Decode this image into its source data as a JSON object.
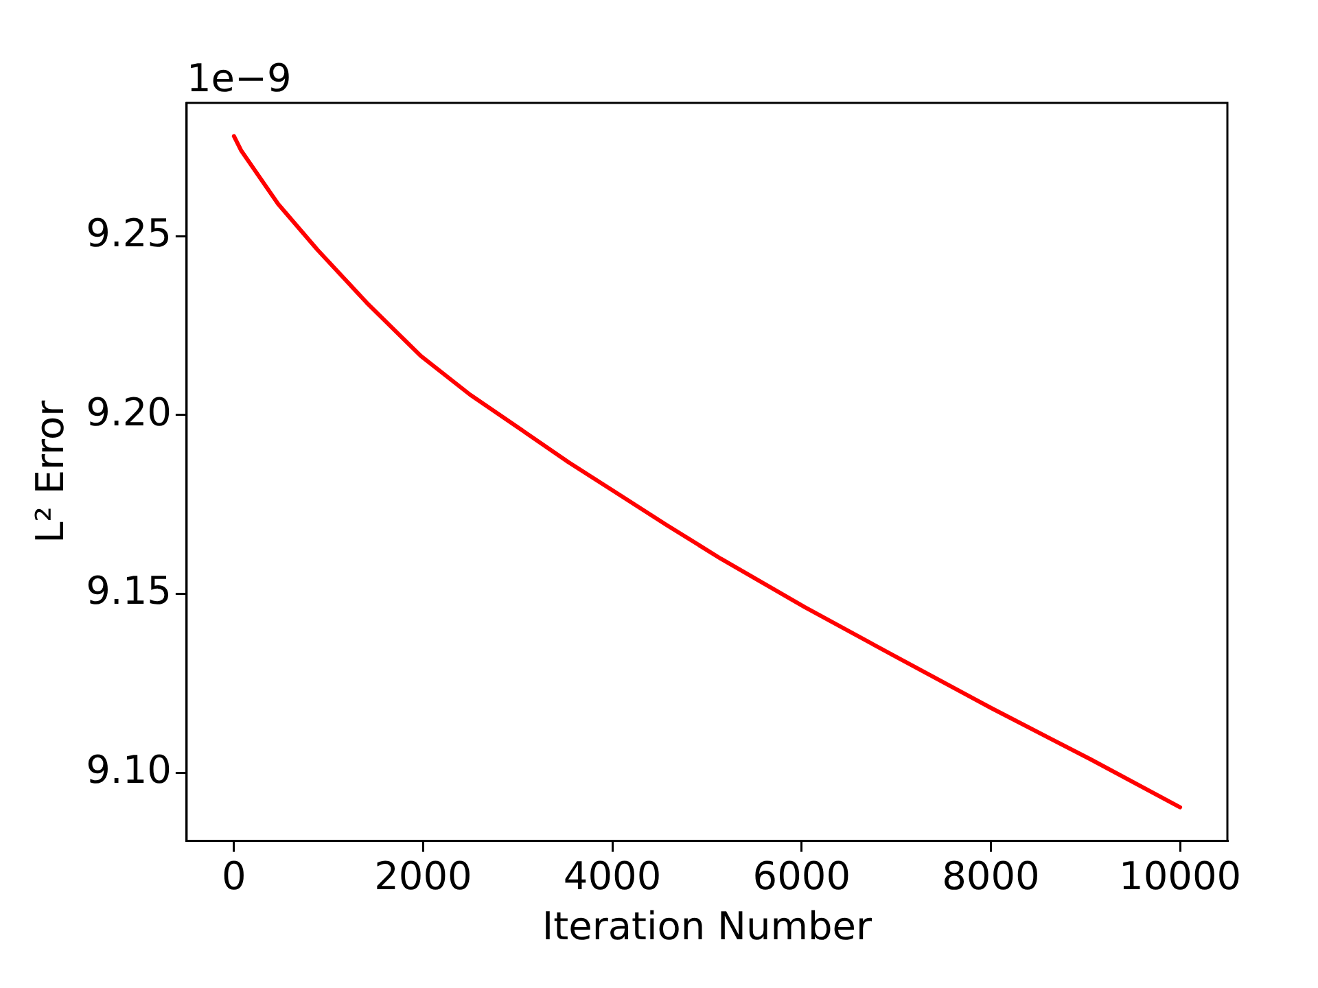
{
  "chart_data": {
    "type": "line",
    "xlabel": "Iteration Number",
    "ylabel": "L² Error",
    "annotations": [
      "1e−9"
    ],
    "x": [
      0,
      78,
      468,
      884,
      1404,
      1976,
      2496,
      3016,
      3537,
      4056,
      4576,
      5148,
      6033,
      6969,
      8008,
      9048,
      10000
    ],
    "series": [
      {
        "color": "#ff0000",
        "values": [
          9.278,
          9.2739,
          9.259,
          9.2462,
          9.2314,
          9.2165,
          9.2057,
          9.1963,
          9.1868,
          9.178,
          9.1692,
          9.1598,
          9.1463,
          9.1328,
          9.118,
          9.1038,
          9.0903
        ]
      }
    ],
    "xlim": [
      -500,
      10500
    ],
    "xticks": [
      0,
      2000,
      4000,
      6000,
      8000,
      10000
    ],
    "ylim": [
      9.0809,
      9.2873
    ],
    "yticks": [
      {
        "value": 9.1,
        "label": "9.10"
      },
      9.15,
      {
        "value": 9.2,
        "label": "9.20"
      },
      9.25
    ],
    "grid": false,
    "legend": false,
    "marker": "none",
    "line_style": "solid"
  }
}
